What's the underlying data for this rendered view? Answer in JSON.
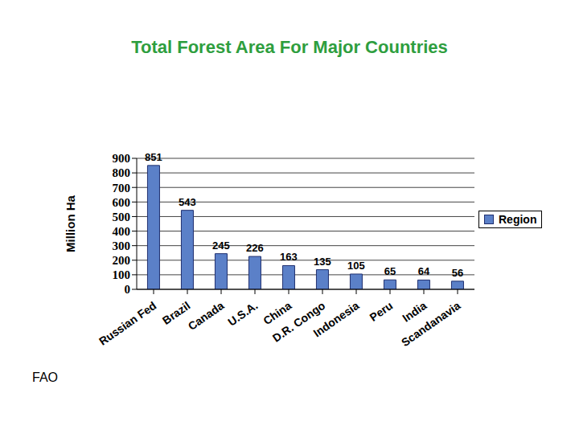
{
  "chart_data": {
    "type": "bar",
    "title": "Total Forest Area For Major Countries",
    "y_label": "Million Ha",
    "categories": [
      "Russian Fed",
      "Brazil",
      "Canada",
      "U.S.A.",
      "China",
      "D.R. Congo",
      "Indonesia",
      "Peru",
      "India",
      "Scandanavia"
    ],
    "series": [
      {
        "name": "Region",
        "color": "#5b80c8",
        "values": [
          851,
          543,
          245,
          226,
          163,
          135,
          105,
          65,
          64,
          56
        ]
      }
    ],
    "ylim": [
      0,
      900
    ],
    "yticks": [
      0,
      100,
      200,
      300,
      400,
      500,
      600,
      700,
      800,
      900
    ],
    "grid": true,
    "data_labels": true,
    "legend": "right"
  },
  "source": "FAO"
}
